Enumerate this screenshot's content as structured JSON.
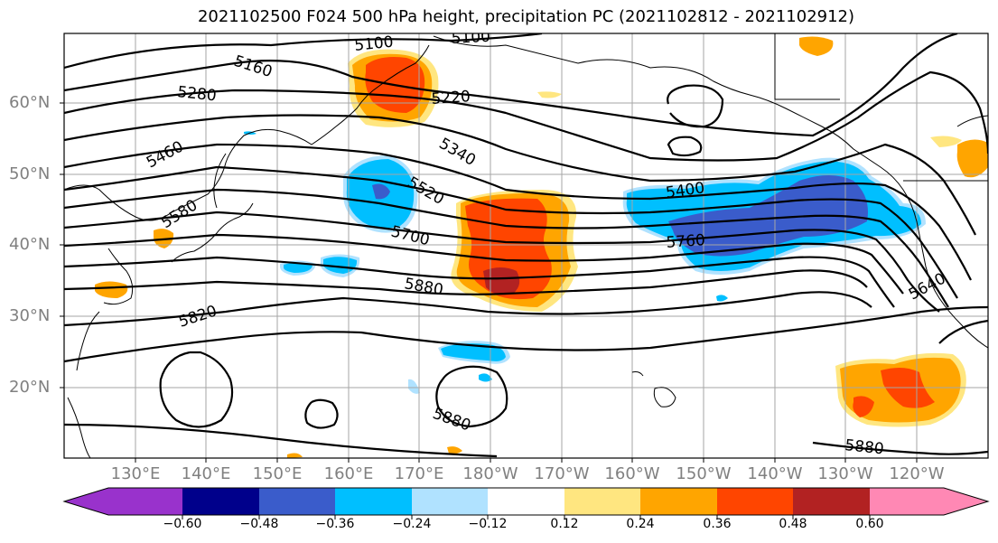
{
  "title": "2021102500 F024 500 hPa height, precipitation PC (2021102812 - 2021102912)",
  "lat_labels": [
    "60°N",
    "50°N",
    "40°N",
    "30°N",
    "20°N"
  ],
  "lon_labels": [
    "130°E",
    "140°E",
    "150°E",
    "160°E",
    "170°E",
    "180°W",
    "170°W",
    "160°W",
    "150°W",
    "140°W",
    "130°W",
    "120°W"
  ],
  "contour_labels": [
    "5100",
    "5100",
    "5160",
    "5280",
    "5220",
    "5340",
    "5460",
    "5520",
    "5580",
    "5700",
    "5400",
    "5760",
    "5880",
    "5820",
    "5640",
    "5880",
    "5880"
  ],
  "colorbar": {
    "ticks": [
      "−0.60",
      "−0.48",
      "−0.36",
      "−0.24",
      "−0.12",
      "0.12",
      "0.24",
      "0.36",
      "0.48",
      "0.60"
    ],
    "colors": [
      "#9932CC",
      "#00008B",
      "#3A5CCB",
      "#00BFFF",
      "#B0E2FF",
      "#FFFFFF",
      "#FFE680",
      "#FFA500",
      "#FF4500",
      "#B22222",
      "#FF88B4"
    ]
  },
  "map": {
    "projection": "cylindrical",
    "lon_range_note": "120°E to 115°W",
    "lat_range_note": "10°N to 70°N",
    "gridlines": true,
    "positive_colors": [
      "#FFE680",
      "#FFA500",
      "#FF4500",
      "#B22222"
    ],
    "negative_colors": [
      "#B0E2FF",
      "#00BFFF",
      "#3A5CCB"
    ]
  }
}
